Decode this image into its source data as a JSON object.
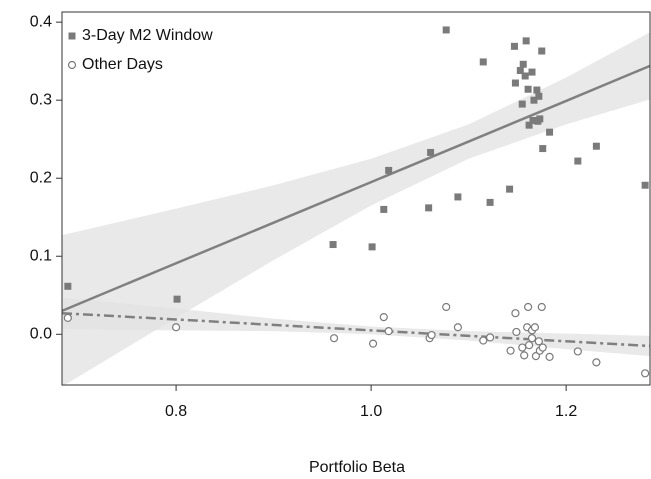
{
  "chart_data": {
    "type": "scatter",
    "x_label": "Portfolio Beta",
    "xlim": [
      0.683,
      1.286
    ],
    "ylim": [
      -0.065,
      0.413
    ],
    "xticks": [
      0.8,
      {
        "value": 1,
        "label": "1.0"
      },
      1.2
    ],
    "yticks": [
      {
        "value": 0,
        "label": "0.0"
      },
      0.1,
      0.2,
      0.3,
      0.4
    ],
    "legend": "upper-left",
    "series": [
      {
        "name": "3-Day M2 Window",
        "color": "#7a7a7a",
        "marker": "square",
        "x": [
          0.689,
          0.801,
          0.961,
          1.001,
          1.013,
          1.018,
          1.059,
          1.061,
          1.077,
          1.089,
          1.115,
          1.122,
          1.142,
          1.147,
          1.148,
          1.153,
          1.155,
          1.159,
          1.156,
          1.158,
          1.161,
          1.165,
          1.162,
          1.166,
          1.167,
          1.17,
          1.172,
          1.171,
          1.175,
          1.173,
          1.176,
          1.183,
          1.212,
          1.231,
          1.281
        ],
        "values": [
          0.0615,
          0.045,
          0.115,
          0.112,
          0.16,
          0.21,
          0.162,
          0.233,
          0.39,
          0.176,
          0.349,
          0.169,
          0.186,
          0.369,
          0.322,
          0.338,
          0.295,
          0.376,
          0.346,
          0.331,
          0.314,
          0.336,
          0.268,
          0.274,
          0.3,
          0.313,
          0.305,
          0.273,
          0.363,
          0.276,
          0.238,
          0.259,
          0.222,
          0.241,
          0.191
        ]
      },
      {
        "name": "Other Days",
        "color": "#7a7a7a",
        "marker": "circle",
        "x": [
          0.689,
          0.8,
          0.962,
          1.002,
          1.013,
          1.018,
          1.06,
          1.062,
          1.077,
          1.089,
          1.115,
          1.122,
          1.143,
          1.148,
          1.149,
          1.155,
          1.157,
          1.161,
          1.16,
          1.162,
          1.165,
          1.165,
          1.168,
          1.169,
          1.172,
          1.173,
          1.175,
          1.176,
          1.183,
          1.212,
          1.231,
          1.281
        ],
        "values": [
          0.021,
          0.009,
          -0.005,
          -0.012,
          0.022,
          0.004,
          -0.005,
          -0.001,
          0.035,
          0.009,
          -0.008,
          -0.004,
          -0.021,
          0.027,
          0.003,
          -0.017,
          -0.027,
          0.035,
          0.009,
          -0.014,
          -0.005,
          0.005,
          0.009,
          -0.028,
          -0.009,
          -0.021,
          0.035,
          -0.017,
          -0.029,
          -0.022,
          -0.036,
          -0.05
        ]
      }
    ],
    "fits": [
      {
        "color": "#808080",
        "band_color": "#e2e2e2",
        "dash": false,
        "x": [
          0.683,
          0.8,
          0.9,
          1.0,
          1.1,
          1.2,
          1.286
        ],
        "values": [
          0.03,
          0.091,
          0.143,
          0.195,
          0.247,
          0.299,
          0.344
        ],
        "lower": [
          -0.067,
          0.021,
          0.095,
          0.165,
          0.225,
          0.269,
          0.301
        ],
        "upper": [
          0.127,
          0.161,
          0.191,
          0.225,
          0.269,
          0.329,
          0.387
        ]
      },
      {
        "color": "#808080",
        "band_color": "#e2e2e2",
        "dash": true,
        "x": [
          0.683,
          0.8,
          0.9,
          1.0,
          1.1,
          1.2,
          1.286
        ],
        "values": [
          0.027,
          0.019,
          0.012,
          0.005,
          -0.002,
          -0.009,
          -0.015
        ],
        "lower": [
          0.007,
          0.005,
          0.004,
          0.0,
          -0.008,
          -0.019,
          -0.028
        ],
        "upper": [
          0.047,
          0.033,
          0.02,
          0.01,
          0.004,
          0.001,
          -0.002
        ]
      }
    ]
  }
}
